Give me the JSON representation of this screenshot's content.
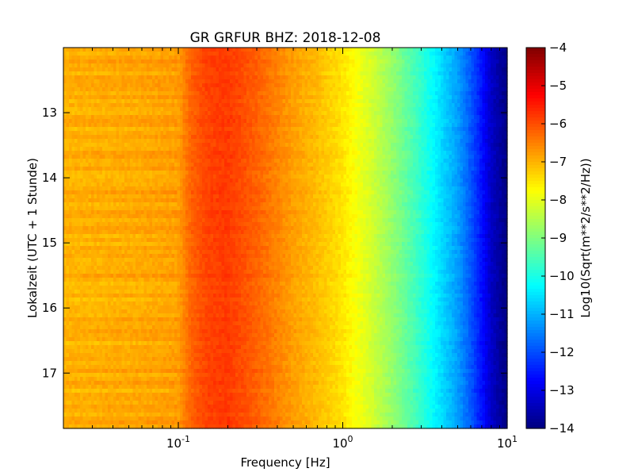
{
  "chart_data": {
    "type": "heatmap",
    "title": "GR GRFUR BHZ: 2018-12-08",
    "xlabel": "Frequency [Hz]",
    "ylabel": "Lokalzeit (UTC + 1 Stunde)",
    "x_scale": "log",
    "xlim": [
      0.02,
      10
    ],
    "ylim": [
      17.85,
      12.0
    ],
    "x_ticks": [
      {
        "value": 0.1,
        "base": "10",
        "exp": "-1"
      },
      {
        "value": 1,
        "base": "10",
        "exp": "0"
      },
      {
        "value": 10,
        "base": "10",
        "exp": "1"
      }
    ],
    "y_ticks": [
      {
        "value": 13,
        "label": "13"
      },
      {
        "value": 14,
        "label": "14"
      },
      {
        "value": 15,
        "label": "15"
      },
      {
        "value": 16,
        "label": "16"
      },
      {
        "value": 17,
        "label": "17"
      }
    ],
    "colorbar": {
      "label": "Log10(Sqrt(m**2/s**2/Hz))",
      "colormap": "jet",
      "range": [
        -14,
        -4
      ],
      "ticks": [
        "-4",
        "-5",
        "-6",
        "-7",
        "-8",
        "-9",
        "-10",
        "-11",
        "-12",
        "-13",
        "-14"
      ]
    },
    "spectrum_profile": {
      "frequency_hz": [
        0.02,
        0.06,
        0.1,
        0.12,
        0.15,
        0.2,
        0.3,
        0.5,
        0.7,
        1.0,
        1.5,
        2.0,
        3.0,
        4.0,
        5.0,
        6.0,
        7.0,
        8.0,
        10.0
      ],
      "log10_amplitude": [
        -7.0,
        -6.9,
        -6.8,
        -6.2,
        -5.9,
        -5.8,
        -6.2,
        -6.8,
        -7.1,
        -7.5,
        -8.2,
        -8.8,
        -9.8,
        -10.6,
        -11.2,
        -11.9,
        -12.6,
        -13.3,
        -14.0
      ]
    }
  }
}
